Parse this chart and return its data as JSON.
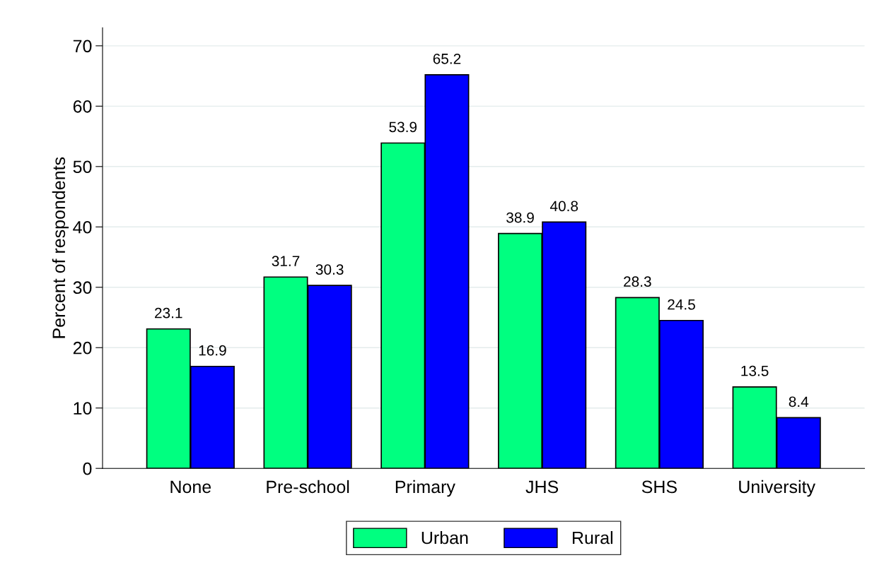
{
  "chart_data": {
    "type": "bar",
    "ylabel": "Percent of respondents",
    "categories": [
      "None",
      "Pre-school",
      "Primary",
      "JHS",
      "SHS",
      "University"
    ],
    "series": [
      {
        "name": "Urban",
        "color": "#00ff80",
        "values": [
          23.1,
          31.7,
          53.9,
          38.9,
          28.3,
          13.5
        ]
      },
      {
        "name": "Rural",
        "color": "#0000ff",
        "values": [
          16.9,
          30.3,
          65.2,
          40.8,
          24.5,
          8.4
        ]
      }
    ],
    "ylim": [
      0,
      73
    ],
    "yticks": [
      0,
      10,
      20,
      30,
      40,
      50,
      60,
      70
    ],
    "grid": "y",
    "legend": "bottom",
    "data_labels": true
  }
}
